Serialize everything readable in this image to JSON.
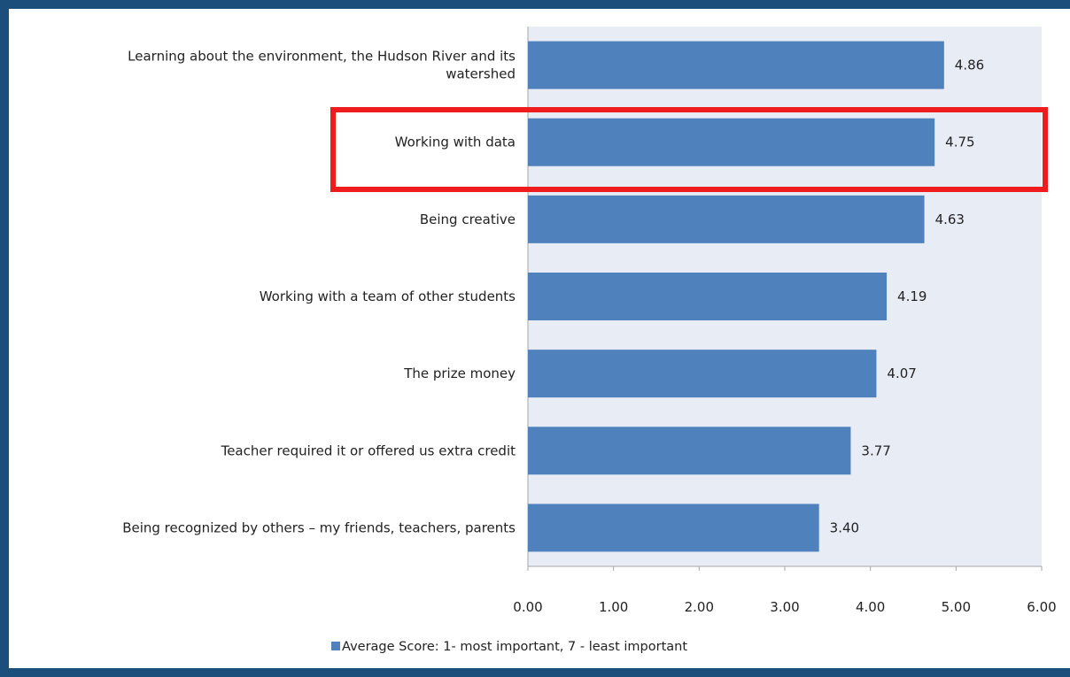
{
  "colors": {
    "background": "#1c4e7c",
    "plot_area": "#e8ecf5",
    "bar": "#4f81bd",
    "highlight": "#ee1c1c"
  },
  "chart_data": {
    "type": "bar",
    "orientation": "horizontal",
    "categories": [
      [
        "Learning about the environment, the Hudson River and its",
        "watershed"
      ],
      [
        "Working with data"
      ],
      [
        "Being creative"
      ],
      [
        "Working with a team of other students"
      ],
      [
        "The prize money"
      ],
      [
        "Teacher required it or offered us extra credit"
      ],
      [
        "Being recognized by others  – my friends, teachers, parents"
      ]
    ],
    "values": [
      4.86,
      4.75,
      4.63,
      4.19,
      4.07,
      3.77,
      3.4
    ],
    "value_labels": [
      "4.86",
      "4.75",
      "4.63",
      "4.19",
      "4.07",
      "3.77",
      "3.40"
    ],
    "xlim": [
      0,
      6
    ],
    "x_ticks": [
      "0.00",
      "1.00",
      "2.00",
      "3.00",
      "4.00",
      "5.00",
      "6.00"
    ],
    "legend": {
      "label": "Average Score: 1- most important,  7 - least important",
      "position": "bottom"
    },
    "highlighted_category_index": 1
  }
}
